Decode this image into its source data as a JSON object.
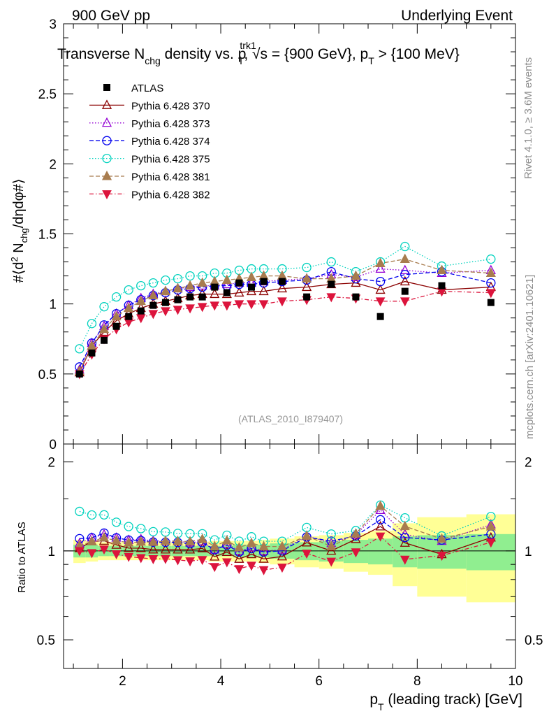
{
  "header": {
    "left": "900 GeV pp",
    "right": "Underlying Event",
    "title": "Transverse N_chg density vs. p_T^trk1, √s = {900 GeV}, p_T > {100 MeV}",
    "ref": "(ATLAS_2010_I879407)",
    "side_top": "Rivet 4.1.0, ≥ 3.6M events",
    "side_bottom": "mcplots.cern.ch [arXiv:2401.10621]"
  },
  "chart_data": {
    "type": "scatter",
    "xlabel": "p_T (leading track) [GeV]",
    "ylabel": "#⟨d² N_chg/dηdφ#⟩",
    "ratio_ylabel": "Ratio to ATLAS",
    "xlim": [
      0.8,
      10.0
    ],
    "ylim": [
      0,
      3
    ],
    "ratio_ylim": [
      0.4,
      2.3
    ],
    "x_ticks": [
      2,
      4,
      6,
      8,
      10
    ],
    "y_ticks": [
      0,
      0.5,
      1,
      1.5,
      2,
      2.5,
      3
    ],
    "y_tick_labels": [
      "0",
      "0.5",
      "1",
      "1.5",
      "2",
      "2.5",
      "3"
    ],
    "ratio_ticks": [
      0.5,
      1,
      2
    ],
    "ratio_tick_labels": [
      "0.5",
      "1",
      "2"
    ],
    "x": [
      1.125,
      1.375,
      1.625,
      1.875,
      2.125,
      2.375,
      2.625,
      2.875,
      3.125,
      3.375,
      3.625,
      3.875,
      4.125,
      4.375,
      4.625,
      4.875,
      5.25,
      5.75,
      6.25,
      6.75,
      7.25,
      7.75,
      8.5,
      9.5
    ],
    "bin_edges": [
      1.0,
      1.25,
      1.5,
      1.75,
      2.0,
      2.25,
      2.5,
      2.75,
      3.0,
      3.25,
      3.5,
      3.75,
      4.0,
      4.25,
      4.5,
      4.75,
      5.0,
      5.5,
      6.0,
      6.5,
      7.0,
      7.5,
      8.0,
      9.0,
      10.0
    ],
    "band_green": [
      0.05,
      0.05,
      0.04,
      0.04,
      0.04,
      0.04,
      0.04,
      0.04,
      0.04,
      0.04,
      0.04,
      0.04,
      0.04,
      0.05,
      0.05,
      0.05,
      0.06,
      0.07,
      0.08,
      0.09,
      0.1,
      0.12,
      0.13,
      0.14
    ],
    "band_yellow": [
      0.09,
      0.08,
      0.07,
      0.07,
      0.07,
      0.07,
      0.07,
      0.07,
      0.07,
      0.07,
      0.07,
      0.08,
      0.08,
      0.08,
      0.08,
      0.09,
      0.1,
      0.12,
      0.13,
      0.15,
      0.17,
      0.24,
      0.3,
      0.33
    ],
    "data": {
      "name": "ATLAS",
      "y": [
        0.5,
        0.65,
        0.74,
        0.84,
        0.91,
        0.95,
        0.99,
        1.01,
        1.03,
        1.05,
        1.05,
        1.12,
        1.08,
        1.15,
        1.12,
        1.16,
        1.16,
        1.05,
        1.14,
        1.05,
        0.91,
        1.09,
        1.13,
        1.01
      ]
    },
    "series": [
      {
        "name": "Pythia 6.428 370",
        "color": "#8b0000",
        "marker": "triangle-open",
        "dash": "",
        "y": [
          0.51,
          0.7,
          0.8,
          0.88,
          0.93,
          0.97,
          1.0,
          1.02,
          1.04,
          1.06,
          1.07,
          1.07,
          1.07,
          1.08,
          1.09,
          1.09,
          1.11,
          1.12,
          1.14,
          1.15,
          1.1,
          1.16,
          1.1,
          1.12
        ]
      },
      {
        "name": "Pythia 6.428 373",
        "color": "#9400d3",
        "marker": "triangle-open",
        "dash": "1.5,2.5",
        "y": [
          0.53,
          0.72,
          0.84,
          0.93,
          0.99,
          1.04,
          1.07,
          1.09,
          1.11,
          1.12,
          1.13,
          1.13,
          1.14,
          1.15,
          1.15,
          1.16,
          1.17,
          1.18,
          1.21,
          1.19,
          1.25,
          1.24,
          1.22,
          1.24
        ]
      },
      {
        "name": "Pythia 6.428 374",
        "color": "#0000ee",
        "marker": "circle-open",
        "dash": "6,3",
        "y": [
          0.55,
          0.72,
          0.85,
          0.93,
          0.99,
          1.03,
          1.06,
          1.08,
          1.1,
          1.11,
          1.12,
          1.13,
          1.13,
          1.14,
          1.14,
          1.15,
          1.16,
          1.17,
          1.23,
          1.18,
          1.16,
          1.21,
          1.23,
          1.15
        ]
      },
      {
        "name": "Pythia 6.428 375",
        "color": "#00d2be",
        "marker": "circle-open",
        "dash": "1.5,2.5",
        "y": [
          0.68,
          0.86,
          0.98,
          1.05,
          1.1,
          1.13,
          1.15,
          1.17,
          1.18,
          1.2,
          1.2,
          1.22,
          1.22,
          1.24,
          1.25,
          1.25,
          1.25,
          1.26,
          1.3,
          1.23,
          1.3,
          1.41,
          1.27,
          1.32
        ]
      },
      {
        "name": "Pythia 6.428 381",
        "color": "#a87c4f",
        "marker": "triangle-filled",
        "dash": "6,3",
        "y": [
          0.52,
          0.7,
          0.82,
          0.91,
          0.97,
          1.02,
          1.06,
          1.09,
          1.11,
          1.13,
          1.15,
          1.16,
          1.17,
          1.18,
          1.19,
          1.2,
          1.2,
          1.18,
          1.18,
          1.2,
          1.29,
          1.32,
          1.24,
          1.22
        ]
      },
      {
        "name": "Pythia 6.428 382",
        "color": "#dc143c",
        "marker": "triangle-down-filled",
        "dash": "6,3,1.5,3",
        "y": [
          0.5,
          0.64,
          0.75,
          0.82,
          0.87,
          0.9,
          0.93,
          0.95,
          0.96,
          0.97,
          0.98,
          0.99,
          0.99,
          1.0,
          1.0,
          1.0,
          1.02,
          1.03,
          1.05,
          1.04,
          1.02,
          1.02,
          1.09,
          1.08
        ]
      }
    ]
  }
}
